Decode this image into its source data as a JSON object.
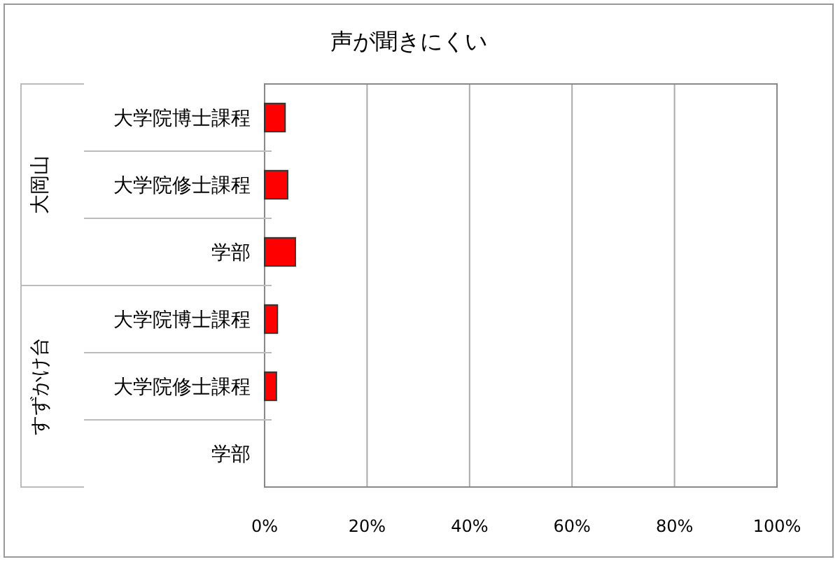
{
  "chart_data": {
    "type": "bar",
    "orientation": "horizontal",
    "title": "声が聞きにくい",
    "categories": [
      "大学院博士課程",
      "大学院修士課程",
      "学部",
      "大学院博士課程",
      "大学院修士課程",
      "学部"
    ],
    "annotations": [
      "大岡山",
      "すずかけ台"
    ],
    "series": [
      {
        "color": "#ff0000",
        "values": [
          4,
          4.5,
          6,
          2.5,
          2.3,
          0
        ]
      }
    ],
    "xlim": [
      0,
      100
    ],
    "xticks": [
      {
        "value": 0,
        "label": "0%"
      },
      {
        "value": 20,
        "label": "20%"
      },
      {
        "value": 40,
        "label": "40%"
      },
      {
        "value": 60,
        "label": "60%"
      },
      {
        "value": 80,
        "label": "80%"
      },
      {
        "value": 100,
        "label": "100%"
      }
    ],
    "grid": "x"
  }
}
